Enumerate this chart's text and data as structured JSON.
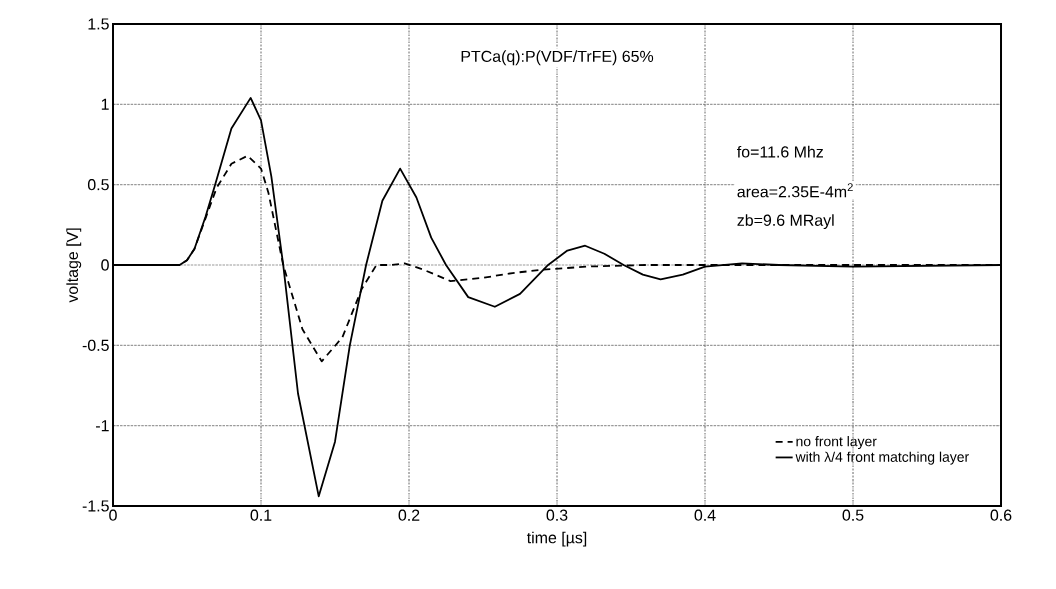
{
  "chart_data": {
    "type": "line",
    "xlabel": "time [µs]",
    "ylabel": "voltage [V]",
    "xlim": [
      0,
      0.6
    ],
    "ylim": [
      -1.5,
      1.5
    ],
    "xticks": [
      0,
      0.1,
      0.2,
      0.3,
      0.4,
      0.5,
      0.6
    ],
    "yticks": [
      -1.5,
      -1,
      -0.5,
      0,
      0.5,
      1,
      1.5
    ],
    "grid": true,
    "legend": "bottom right",
    "marker": "none",
    "annotations": [
      "PTCa(q):P(VDF/TrFE) 65%",
      "fo=11.6  Mhz",
      "area=2.35E-4m$^{2}$",
      "zb=9.6  MRayl"
    ],
    "series": [
      {
        "name": "no front layer",
        "color": "#000000",
        "line_style": "dashed",
        "x": [
          0,
          0.045,
          0.05,
          0.055,
          0.0625,
          0.07,
          0.08,
          0.091,
          0.1,
          0.105,
          0.115,
          0.128,
          0.141,
          0.155,
          0.168,
          0.178,
          0.188,
          0.197,
          0.21,
          0.228,
          0.25,
          0.27,
          0.29,
          0.32,
          0.36,
          0.4,
          0.45,
          0.5,
          0.6
        ],
        "values": [
          0,
          0,
          0.03,
          0.1,
          0.29,
          0.48,
          0.63,
          0.68,
          0.6,
          0.45,
          0.0,
          -0.4,
          -0.6,
          -0.45,
          -0.15,
          0,
          0.0,
          0.01,
          -0.03,
          -0.1,
          -0.08,
          -0.05,
          -0.03,
          -0.01,
          0,
          0,
          0,
          0,
          0
        ]
      },
      {
        "name": "with λ/4 front matching layer",
        "color": "#000000",
        "line_style": "solid",
        "x": [
          0,
          0.045,
          0.05,
          0.055,
          0.0625,
          0.069,
          0.08,
          0.093,
          0.1,
          0.107,
          0.115,
          0.125,
          0.139,
          0.15,
          0.16,
          0.171,
          0.182,
          0.194,
          0.205,
          0.215,
          0.225,
          0.24,
          0.258,
          0.275,
          0.294,
          0.307,
          0.319,
          0.332,
          0.345,
          0.358,
          0.37,
          0.385,
          0.4,
          0.425,
          0.45,
          0.5,
          0.6
        ],
        "values": [
          0,
          0,
          0.03,
          0.1,
          0.3,
          0.5,
          0.85,
          1.04,
          0.9,
          0.55,
          0.0,
          -0.8,
          -1.44,
          -1.1,
          -0.5,
          0,
          0.4,
          0.6,
          0.42,
          0.17,
          0.0,
          -0.2,
          -0.26,
          -0.18,
          0.0,
          0.09,
          0.12,
          0.07,
          0.0,
          -0.06,
          -0.09,
          -0.06,
          -0.01,
          0.01,
          0,
          -0.01,
          0
        ]
      }
    ]
  }
}
